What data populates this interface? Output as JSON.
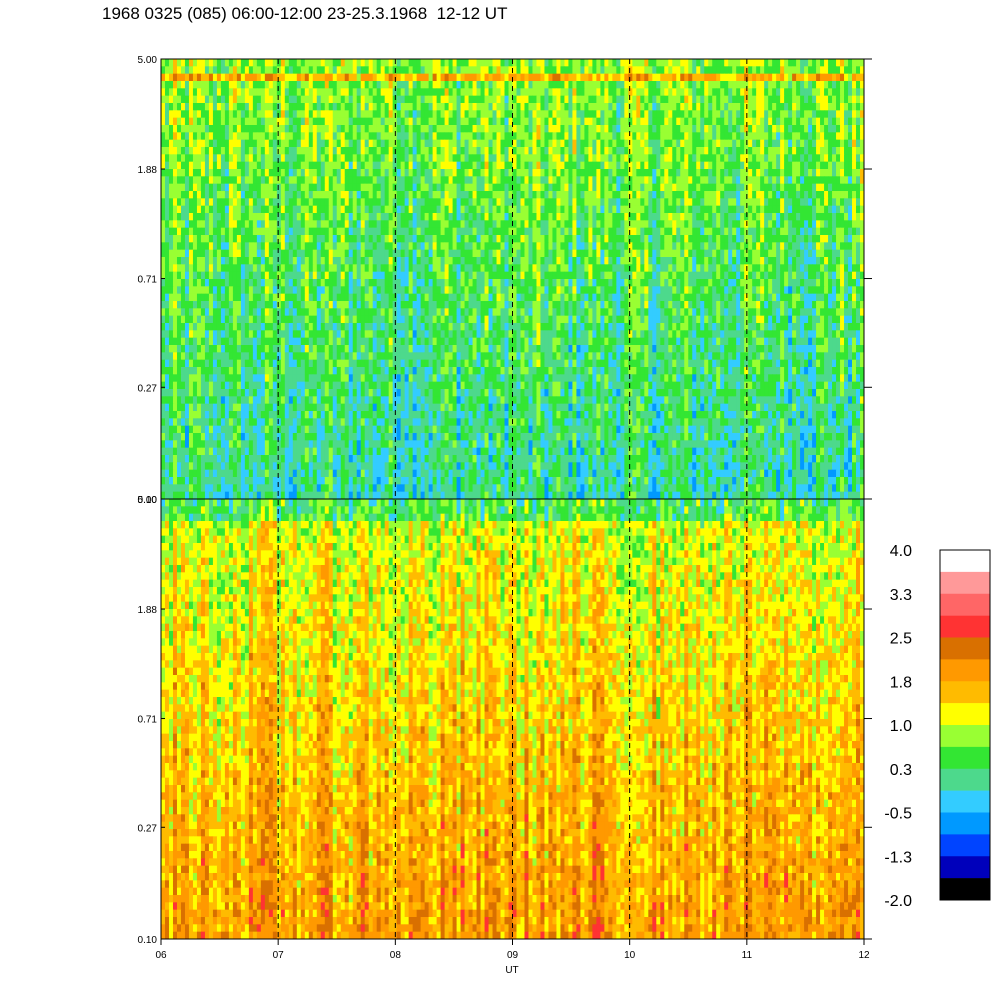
{
  "title": "1968 0325 (085) 06:00-12:00 23-25.3.1968  12-12 UT",
  "chart_data": {
    "type": "heatmap",
    "panels": [
      {
        "name": "",
        "y_ticks": [
          "5.00",
          "1.88",
          "0.71",
          "0.27",
          "0.10"
        ],
        "ylim": [
          0.1,
          5.0
        ],
        "y_scale": "log",
        "base_level": 0.3
      },
      {
        "name": "",
        "y_ticks": [
          "5.00",
          "1.88",
          "0.71",
          "0.27",
          "0.10"
        ],
        "ylim": [
          0.1,
          5.0
        ],
        "y_scale": "log",
        "base_level": 1.7
      }
    ],
    "x_ticks": [
      "06",
      "07",
      "08",
      "09",
      "10",
      "11",
      "12"
    ],
    "xlim": [
      6,
      12
    ],
    "xlabel": "UT",
    "colorbar": {
      "labels": [
        "4.0",
        "3.3",
        "2.5",
        "1.8",
        "1.0",
        "0.3",
        "-0.5",
        "-1.3",
        "-2.0"
      ],
      "colors": [
        "#ffffff",
        "#ff9999",
        "#ff6666",
        "#ff3333",
        "#d97000",
        "#ff9900",
        "#ffbb00",
        "#ffff00",
        "#99ff33",
        "#33e633",
        "#4dd98c",
        "#33ccff",
        "#0099ff",
        "#0044ff",
        "#0000bb",
        "#000000"
      ]
    }
  }
}
